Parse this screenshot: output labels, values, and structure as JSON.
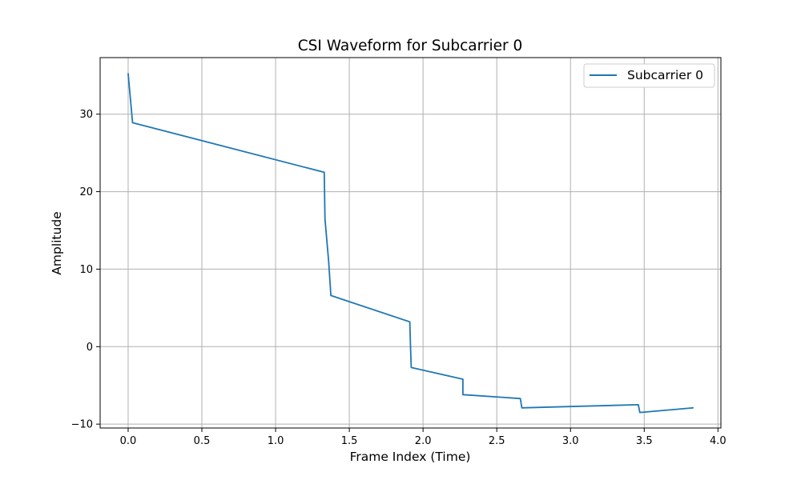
{
  "chart_data": {
    "type": "line",
    "title": "CSI Waveform for Subcarrier 0",
    "xlabel": "Frame Index (Time)",
    "ylabel": "Amplitude",
    "xlim": [
      -0.19,
      4.02
    ],
    "ylim": [
      -10.5,
      37.3
    ],
    "xticks": [
      0.0,
      0.5,
      1.0,
      1.5,
      2.0,
      2.5,
      3.0,
      3.5,
      4.0
    ],
    "xtick_labels": [
      "0.0",
      "0.5",
      "1.0",
      "1.5",
      "2.0",
      "2.5",
      "3.0",
      "3.5",
      "4.0"
    ],
    "yticks": [
      -10,
      0,
      10,
      20,
      30
    ],
    "ytick_labels": [
      "−10",
      "0",
      "10",
      "20",
      "30"
    ],
    "grid": true,
    "legend_position": "top-right",
    "series": [
      {
        "name": "Subcarrier 0",
        "color": "#1f77b4",
        "x": [
          0.0,
          0.03,
          1.33,
          1.335,
          1.36,
          1.375,
          1.91,
          1.915,
          1.92,
          2.27,
          2.27,
          2.66,
          2.67,
          3.46,
          3.47,
          3.83
        ],
        "y": [
          35.2,
          28.9,
          22.5,
          16.5,
          11.0,
          6.6,
          3.2,
          0.0,
          -2.7,
          -4.2,
          -6.2,
          -6.7,
          -7.9,
          -7.5,
          -8.5,
          -7.9
        ]
      }
    ]
  }
}
